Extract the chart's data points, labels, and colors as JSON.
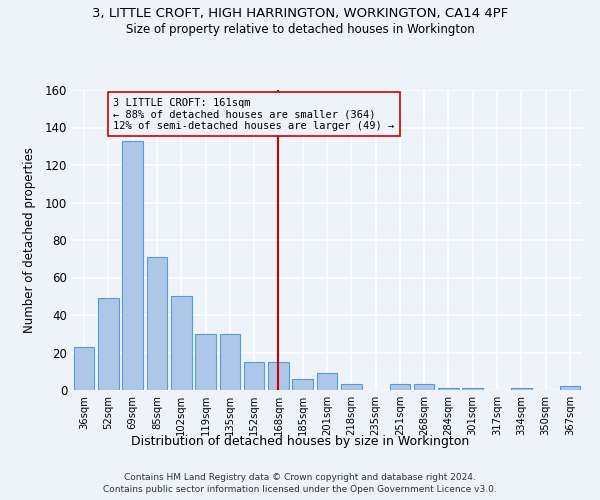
{
  "title1": "3, LITTLE CROFT, HIGH HARRINGTON, WORKINGTON, CA14 4PF",
  "title2": "Size of property relative to detached houses in Workington",
  "xlabel": "Distribution of detached houses by size in Workington",
  "ylabel": "Number of detached properties",
  "categories": [
    "36sqm",
    "52sqm",
    "69sqm",
    "85sqm",
    "102sqm",
    "119sqm",
    "135sqm",
    "152sqm",
    "168sqm",
    "185sqm",
    "201sqm",
    "218sqm",
    "235sqm",
    "251sqm",
    "268sqm",
    "284sqm",
    "301sqm",
    "317sqm",
    "334sqm",
    "350sqm",
    "367sqm"
  ],
  "values": [
    23,
    49,
    133,
    71,
    50,
    30,
    30,
    15,
    15,
    6,
    9,
    3,
    0,
    3,
    3,
    1,
    1,
    0,
    1,
    0,
    2
  ],
  "bar_color": "#aec6e8",
  "bar_edge_color": "#5b9bd5",
  "vline_x": 8.0,
  "vline_color": "#cc0000",
  "annotation_text": "3 LITTLE CROFT: 161sqm\n← 88% of detached houses are smaller (364)\n12% of semi-detached houses are larger (49) →",
  "annotation_box_color": "#cc0000",
  "ylim": [
    0,
    160
  ],
  "yticks": [
    0,
    20,
    40,
    60,
    80,
    100,
    120,
    140,
    160
  ],
  "footer1": "Contains HM Land Registry data © Crown copyright and database right 2024.",
  "footer2": "Contains public sector information licensed under the Open Government Licence v3.0.",
  "bg_color": "#eef2f9",
  "grid_color": "#ffffff"
}
